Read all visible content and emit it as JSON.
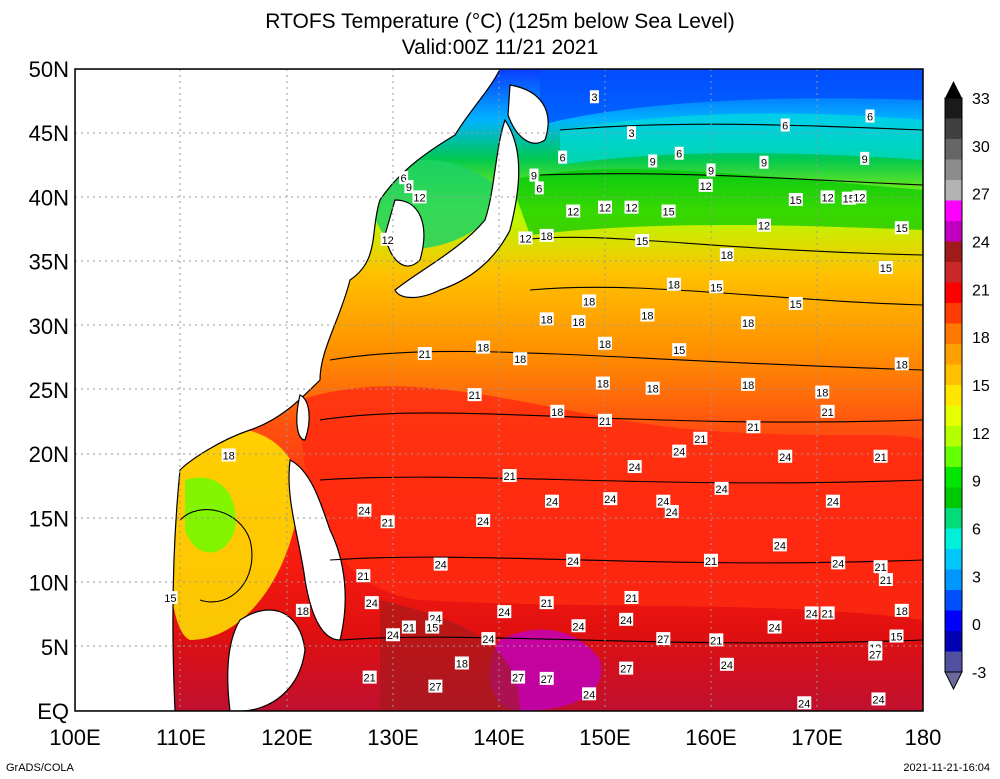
{
  "title": "RTOFS Temperature (°C) (125m below Sea Level)",
  "subtitle": "Valid:00Z 11/21 2021",
  "footer_left": "GrADS/COLA",
  "footer_right": "2021-11-21-16:04",
  "axes": {
    "lat_labels": [
      "50N",
      "45N",
      "40N",
      "35N",
      "30N",
      "25N",
      "20N",
      "15N",
      "10N",
      "5N",
      "EQ"
    ],
    "lon_labels": [
      "100E",
      "110E",
      "120E",
      "130E",
      "140E",
      "150E",
      "160E",
      "170E",
      "180"
    ],
    "lat_values": [
      50,
      45,
      40,
      35,
      30,
      25,
      20,
      15,
      10,
      5,
      0
    ],
    "lon_values": [
      100,
      110,
      120,
      130,
      140,
      150,
      160,
      170,
      180
    ]
  },
  "colorbar": {
    "labels": [
      "33",
      "30",
      "27",
      "24",
      "21",
      "18",
      "15",
      "12",
      "9",
      "6",
      "3",
      "0",
      "-3"
    ],
    "colors": [
      "#1a1a1a",
      "#404040",
      "#666666",
      "#8c8c8c",
      "#b3b3b3",
      "#ff00ff",
      "#c000c0",
      "#a01a1a",
      "#c82828",
      "#ff0000",
      "#ff3c00",
      "#ff7800",
      "#ffa000",
      "#ffc000",
      "#ffe600",
      "#e6ff00",
      "#b4ff00",
      "#64ff00",
      "#00e600",
      "#00c800",
      "#00dc78",
      "#00f0dc",
      "#00c8ff",
      "#0096ff",
      "#0050ff",
      "#0000ff",
      "#0000b4",
      "#5050a0"
    ]
  },
  "contour_labels": [
    {
      "text": "3",
      "lon": 149,
      "lat": 47.8
    },
    {
      "text": "3",
      "lon": 152.5,
      "lat": 45
    },
    {
      "text": "6",
      "lon": 146,
      "lat": 43.1
    },
    {
      "text": "6",
      "lon": 157,
      "lat": 43.4
    },
    {
      "text": "6",
      "lon": 167,
      "lat": 45.6
    },
    {
      "text": "6",
      "lon": 175,
      "lat": 46.3
    },
    {
      "text": "9",
      "lon": 154.5,
      "lat": 42.8
    },
    {
      "text": "9",
      "lon": 160,
      "lat": 42.1
    },
    {
      "text": "9",
      "lon": 165,
      "lat": 42.7
    },
    {
      "text": "9",
      "lon": 174.5,
      "lat": 43
    },
    {
      "text": "6",
      "lon": 143.8,
      "lat": 40.7
    },
    {
      "text": "9",
      "lon": 143.3,
      "lat": 41.7
    },
    {
      "text": "6",
      "lon": 131,
      "lat": 41.5
    },
    {
      "text": "9",
      "lon": 131.5,
      "lat": 40.8
    },
    {
      "text": "12",
      "lon": 132.5,
      "lat": 40
    },
    {
      "text": "12",
      "lon": 129.5,
      "lat": 36.7
    },
    {
      "text": "12",
      "lon": 142.5,
      "lat": 36.8
    },
    {
      "text": "18",
      "lon": 144.5,
      "lat": 37
    },
    {
      "text": "12",
      "lon": 147,
      "lat": 38.9
    },
    {
      "text": "12",
      "lon": 150,
      "lat": 39.2
    },
    {
      "text": "12",
      "lon": 152.5,
      "lat": 39.2
    },
    {
      "text": "15",
      "lon": 156,
      "lat": 38.9
    },
    {
      "text": "12",
      "lon": 159.5,
      "lat": 40.9
    },
    {
      "text": "15",
      "lon": 168,
      "lat": 39.8
    },
    {
      "text": "12",
      "lon": 171,
      "lat": 40
    },
    {
      "text": "15",
      "lon": 173,
      "lat": 39.9
    },
    {
      "text": "12",
      "lon": 174,
      "lat": 40
    },
    {
      "text": "12",
      "lon": 165,
      "lat": 37.8
    },
    {
      "text": "15",
      "lon": 178,
      "lat": 37.6
    },
    {
      "text": "15",
      "lon": 153.5,
      "lat": 36.6
    },
    {
      "text": "18",
      "lon": 161.5,
      "lat": 35.5
    },
    {
      "text": "15",
      "lon": 176.5,
      "lat": 34.5
    },
    {
      "text": "18",
      "lon": 156.5,
      "lat": 33.2
    },
    {
      "text": "15",
      "lon": 160.5,
      "lat": 33
    },
    {
      "text": "18",
      "lon": 148.5,
      "lat": 31.9
    },
    {
      "text": "18",
      "lon": 144.5,
      "lat": 30.5
    },
    {
      "text": "18",
      "lon": 147.5,
      "lat": 30.3
    },
    {
      "text": "18",
      "lon": 154,
      "lat": 30.8
    },
    {
      "text": "18",
      "lon": 163.5,
      "lat": 30.2
    },
    {
      "text": "15",
      "lon": 168,
      "lat": 31.7
    },
    {
      "text": "18",
      "lon": 150,
      "lat": 28.6
    },
    {
      "text": "15",
      "lon": 157,
      "lat": 28.1
    },
    {
      "text": "18",
      "lon": 138.5,
      "lat": 28.3
    },
    {
      "text": "18",
      "lon": 142,
      "lat": 27.4
    },
    {
      "text": "18",
      "lon": 178,
      "lat": 27
    },
    {
      "text": "21",
      "lon": 133,
      "lat": 27.8
    },
    {
      "text": "18",
      "lon": 149.8,
      "lat": 25.5
    },
    {
      "text": "18",
      "lon": 154.5,
      "lat": 25.1
    },
    {
      "text": "18",
      "lon": 163.5,
      "lat": 25.4
    },
    {
      "text": "18",
      "lon": 170.5,
      "lat": 24.8
    },
    {
      "text": "21",
      "lon": 137.7,
      "lat": 24.6
    },
    {
      "text": "18",
      "lon": 145.5,
      "lat": 23.3
    },
    {
      "text": "21",
      "lon": 150,
      "lat": 22.6
    },
    {
      "text": "21",
      "lon": 171,
      "lat": 23.3
    },
    {
      "text": "21",
      "lon": 164,
      "lat": 22.1
    },
    {
      "text": "21",
      "lon": 159,
      "lat": 21.2
    },
    {
      "text": "24",
      "lon": 157,
      "lat": 20.2
    },
    {
      "text": "24",
      "lon": 152.8,
      "lat": 19
    },
    {
      "text": "24",
      "lon": 167,
      "lat": 19.8
    },
    {
      "text": "21",
      "lon": 176,
      "lat": 19.8
    },
    {
      "text": "18",
      "lon": 114.5,
      "lat": 19.9
    },
    {
      "text": "21",
      "lon": 141,
      "lat": 18.3
    },
    {
      "text": "24",
      "lon": 161,
      "lat": 17.3
    },
    {
      "text": "24",
      "lon": 145,
      "lat": 16.3
    },
    {
      "text": "24",
      "lon": 150.5,
      "lat": 16.5
    },
    {
      "text": "24",
      "lon": 155.5,
      "lat": 16.3
    },
    {
      "text": "24",
      "lon": 156.3,
      "lat": 15.5
    },
    {
      "text": "24",
      "lon": 171.5,
      "lat": 16.3
    },
    {
      "text": "24",
      "lon": 127.3,
      "lat": 15.6
    },
    {
      "text": "21",
      "lon": 129.5,
      "lat": 14.7
    },
    {
      "text": "24",
      "lon": 138.5,
      "lat": 14.8
    },
    {
      "text": "24",
      "lon": 166.5,
      "lat": 12.9
    },
    {
      "text": "24",
      "lon": 134.5,
      "lat": 11.4
    },
    {
      "text": "24",
      "lon": 147,
      "lat": 11.7
    },
    {
      "text": "21",
      "lon": 160,
      "lat": 11.7
    },
    {
      "text": "24",
      "lon": 172,
      "lat": 11.5
    },
    {
      "text": "21",
      "lon": 176,
      "lat": 11.2
    },
    {
      "text": "21",
      "lon": 176.5,
      "lat": 10.2
    },
    {
      "text": "21",
      "lon": 127.2,
      "lat": 10.5
    },
    {
      "text": "15",
      "lon": 109,
      "lat": 8.8
    },
    {
      "text": "21",
      "lon": 152.5,
      "lat": 8.8
    },
    {
      "text": "24",
      "lon": 128,
      "lat": 8.4
    },
    {
      "text": "21",
      "lon": 144.5,
      "lat": 8.4
    },
    {
      "text": "18",
      "lon": 121.5,
      "lat": 7.8
    },
    {
      "text": "24",
      "lon": 140.5,
      "lat": 7.7
    },
    {
      "text": "24",
      "lon": 134,
      "lat": 7.2
    },
    {
      "text": "24",
      "lon": 152,
      "lat": 7.1
    },
    {
      "text": "24",
      "lon": 169.5,
      "lat": 7.6
    },
    {
      "text": "21",
      "lon": 171,
      "lat": 7.6
    },
    {
      "text": "18",
      "lon": 178,
      "lat": 7.8
    },
    {
      "text": "24",
      "lon": 147.5,
      "lat": 6.6
    },
    {
      "text": "24",
      "lon": 166,
      "lat": 6.5
    },
    {
      "text": "21",
      "lon": 131.5,
      "lat": 6.5
    },
    {
      "text": "15",
      "lon": 133.7,
      "lat": 6.5
    },
    {
      "text": "24",
      "lon": 130,
      "lat": 5.9
    },
    {
      "text": "24",
      "lon": 139,
      "lat": 5.6
    },
    {
      "text": "27",
      "lon": 155.5,
      "lat": 5.6
    },
    {
      "text": "21",
      "lon": 160.5,
      "lat": 5.5
    },
    {
      "text": "12",
      "lon": 175.5,
      "lat": 4.9
    },
    {
      "text": "15",
      "lon": 177.5,
      "lat": 5.8
    },
    {
      "text": "18",
      "lon": 136.5,
      "lat": 3.7
    },
    {
      "text": "24",
      "lon": 161.5,
      "lat": 3.6
    },
    {
      "text": "27",
      "lon": 175.5,
      "lat": 4.4
    },
    {
      "text": "27",
      "lon": 152,
      "lat": 3.3
    },
    {
      "text": "21",
      "lon": 127.8,
      "lat": 2.6
    },
    {
      "text": "27",
      "lon": 141.8,
      "lat": 2.6
    },
    {
      "text": "27",
      "lon": 144.5,
      "lat": 2.5
    },
    {
      "text": "27",
      "lon": 134,
      "lat": 1.9
    },
    {
      "text": "24",
      "lon": 148.5,
      "lat": 1.3
    },
    {
      "text": "24",
      "lon": 175.8,
      "lat": 0.9
    },
    {
      "text": "24",
      "lon": 168.8,
      "lat": 0.6
    }
  ]
}
